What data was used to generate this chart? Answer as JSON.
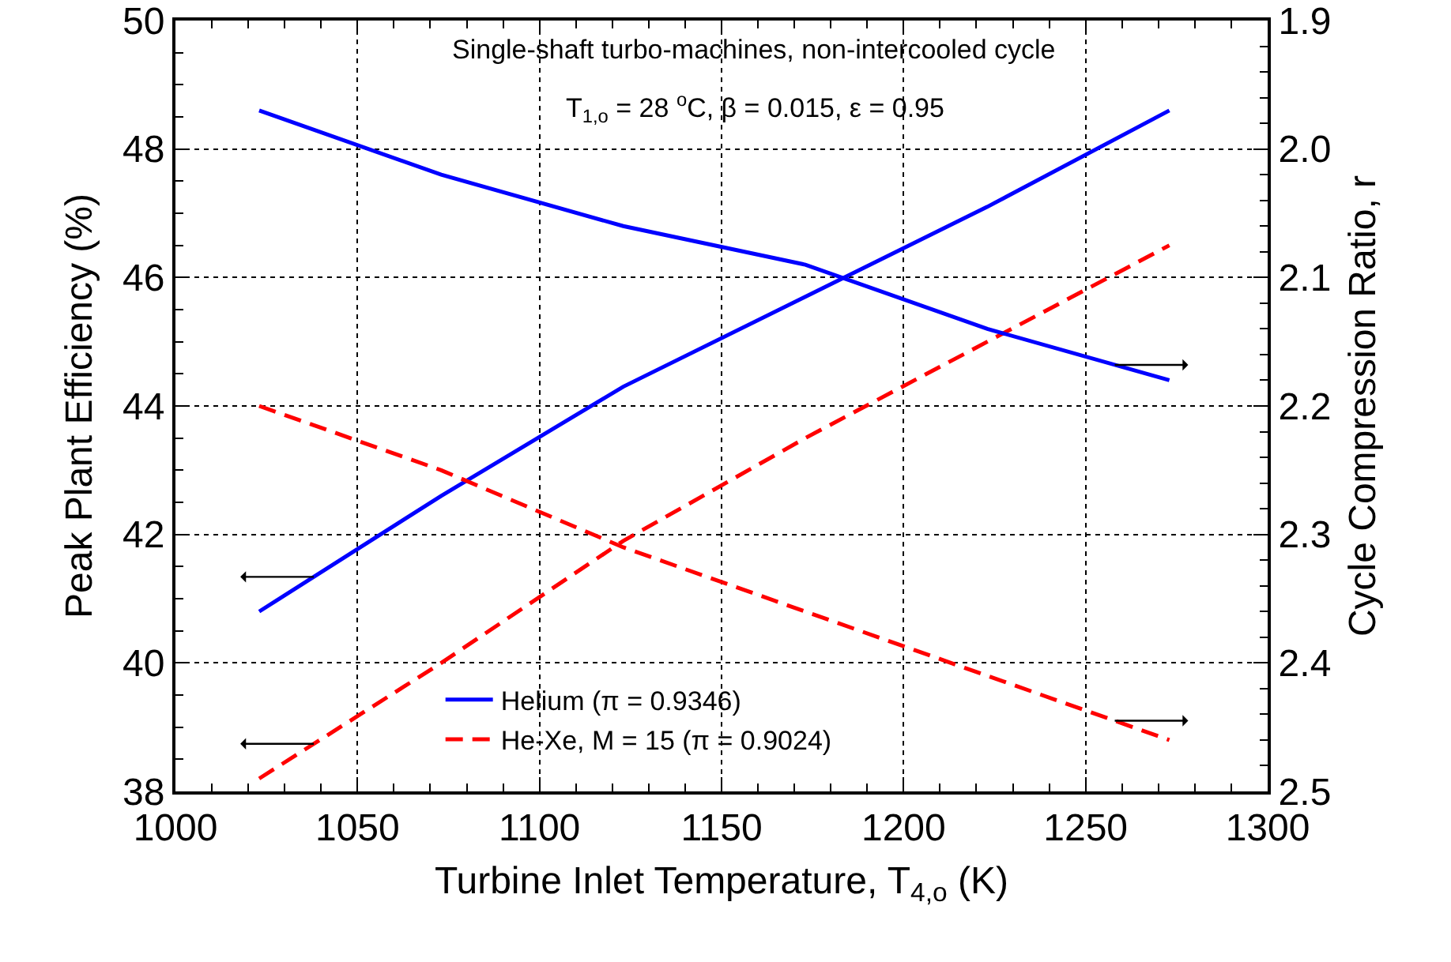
{
  "chart_data": {
    "type": "line",
    "xlabel": "Turbine Inlet Temperature, T$_{4,o}$ (K)",
    "ylabel": "Peak Plant Efficiency (%)",
    "y2label": "Cycle Compression Ratio, r",
    "annotations": [
      "Single-shaft turbo-machines, non-intercooled cycle",
      "T$_{1,o}$ = 28 $^{o}$C, β = 0.015, ε = 0.95"
    ],
    "x": [
      1023,
      1073,
      1123,
      1173,
      1223,
      1273
    ],
    "series": [
      {
        "name": "Helium (π = 0.9346)",
        "color": "#0000ff",
        "line_style": "solid",
        "values": [
          40.8,
          42.6,
          44.3,
          45.7,
          47.1,
          48.6
        ]
      },
      {
        "color": "#0000ff",
        "line_style": "solid",
        "axis": "y2",
        "values": [
          1.97,
          2.02,
          2.06,
          2.09,
          2.14,
          2.18
        ]
      },
      {
        "name": "He-Xe, M = 15 (π = 0.9024)",
        "color": "#ff0000",
        "line_style": "dashed",
        "values": [
          38.2,
          40.0,
          41.9,
          43.5,
          45.0,
          46.5
        ]
      },
      {
        "color": "#ff0000",
        "line_style": "dashed",
        "axis": "y2",
        "values": [
          2.2,
          2.25,
          2.31,
          2.36,
          2.41,
          2.46
        ]
      }
    ],
    "xlim": [
      1000,
      1300
    ],
    "xticks": [
      1000,
      1050,
      1100,
      1150,
      1200,
      1250,
      1300
    ],
    "ylim": [
      38,
      50
    ],
    "yticks": [
      38,
      40,
      42,
      44,
      46,
      48,
      50
    ],
    "y2lim": [
      2.5,
      1.9
    ],
    "y2ticks": [
      {
        "value": 1.9,
        "label": "1.9"
      },
      {
        "value": 2.0,
        "label": "2.0"
      },
      {
        "value": 2.1,
        "label": "2.1"
      },
      {
        "value": 2.2,
        "label": "2.2"
      },
      {
        "value": 2.3,
        "label": "2.3"
      },
      {
        "value": 2.4,
        "label": "2.4"
      },
      {
        "value": 2.5,
        "label": "2.5"
      }
    ],
    "grid": true,
    "legend": "bottom",
    "marker": "none"
  }
}
